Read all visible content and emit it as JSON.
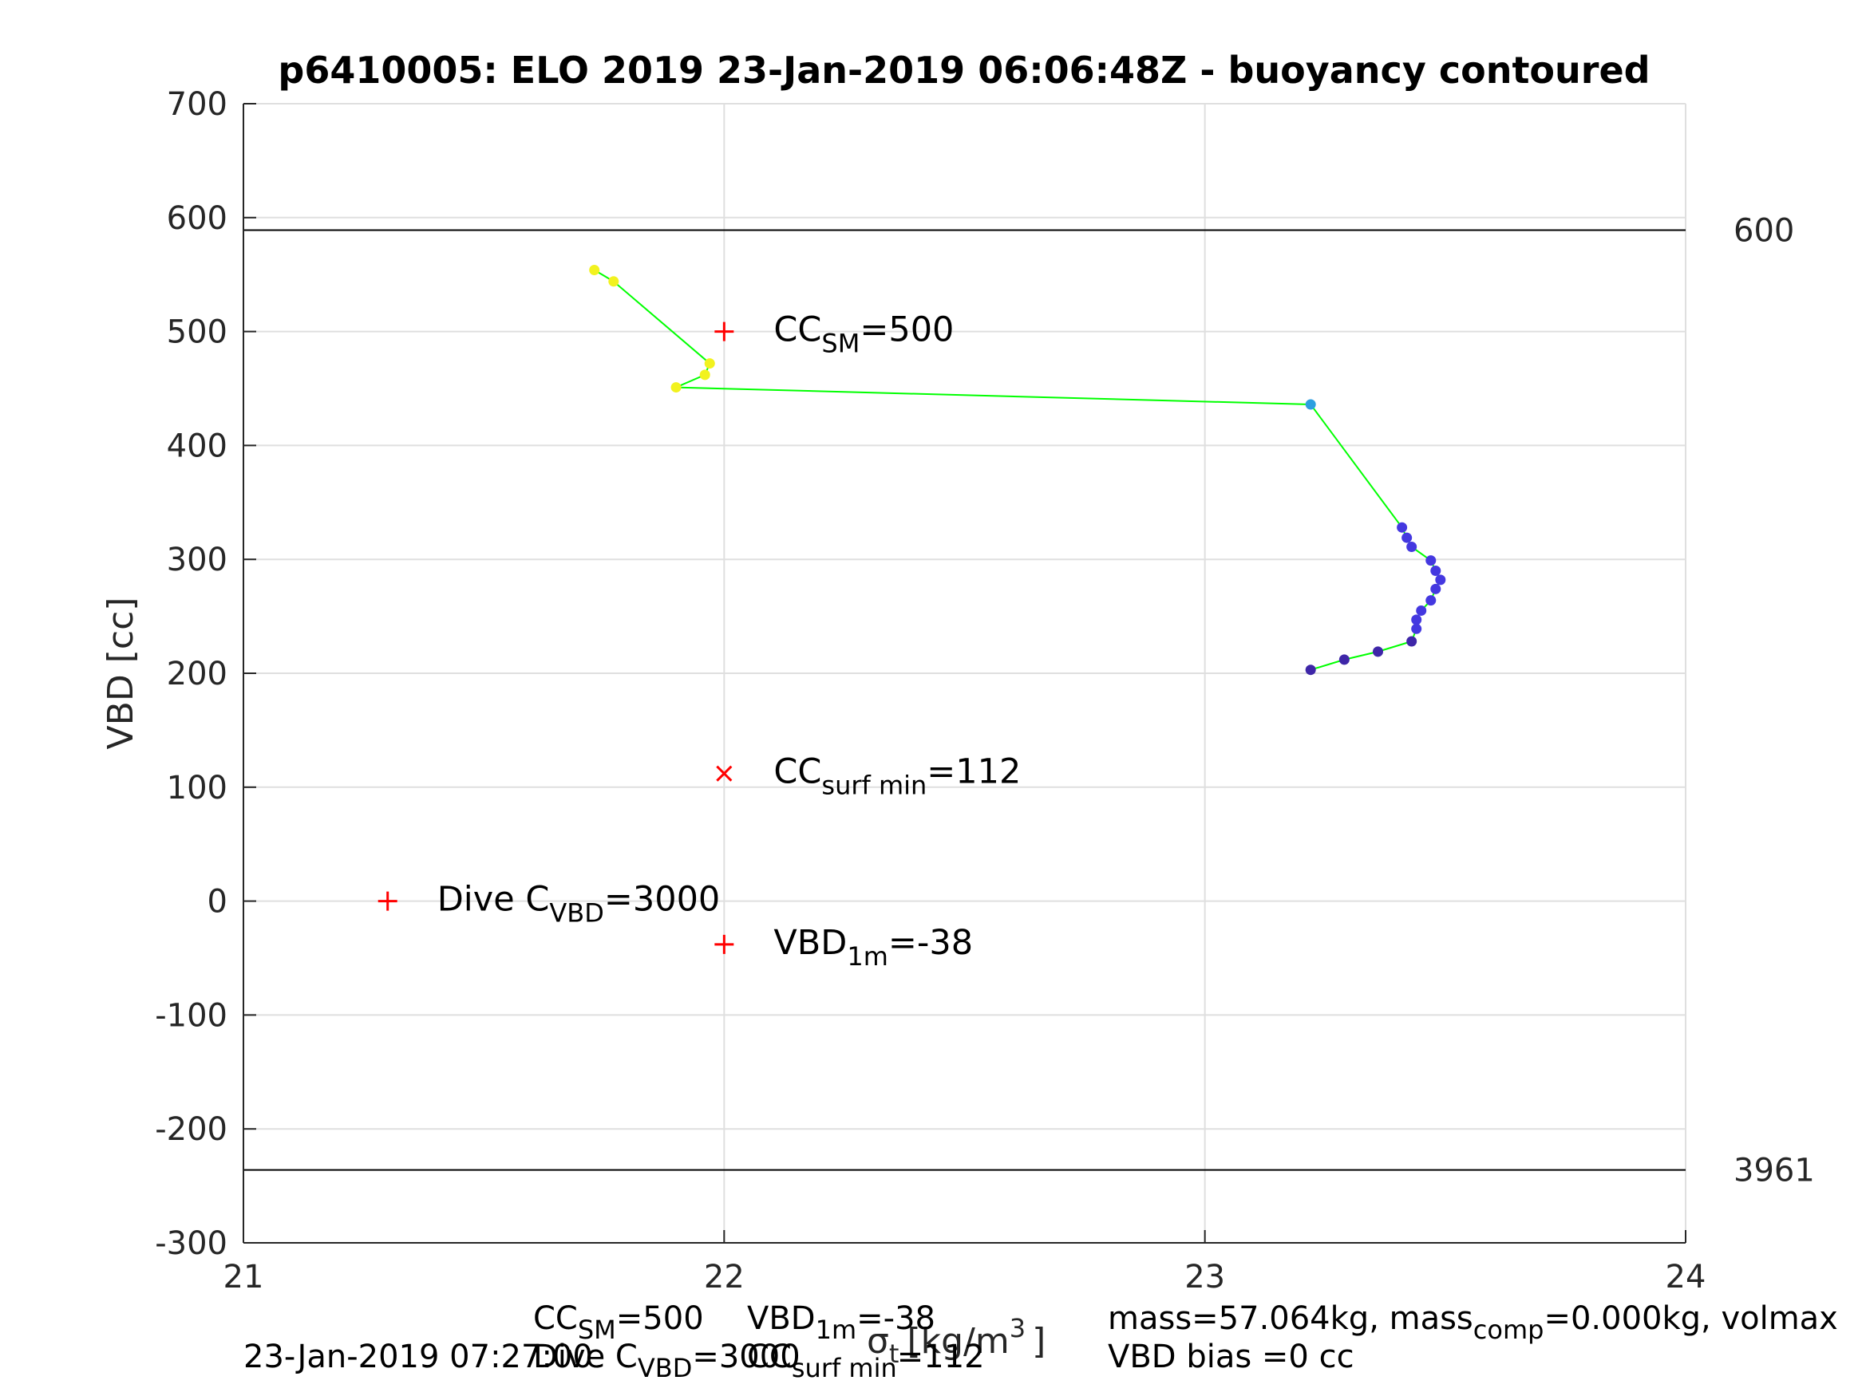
{
  "chart_data": {
    "type": "scatter",
    "title": "p6410005: ELO 2019 23-Jan-2019 06:06:48Z - buoyancy contoured",
    "ylabel": "VBD [cc]",
    "xlabel_main": "σ",
    "xlabel_sub": "t",
    "xlabel_unit": "[kg/m",
    "xlabel_exp": "3",
    "xlabel_close": "]",
    "xlim": [
      21,
      24
    ],
    "ylim": [
      -300,
      700
    ],
    "xticks": [
      "21",
      "22",
      "23",
      "24"
    ],
    "yticks": [
      "-300",
      "-200",
      "-100",
      "0",
      "100",
      "200",
      "300",
      "400",
      "500",
      "600",
      "700"
    ],
    "grid": true,
    "hlines": [
      {
        "y": 589,
        "label": "600"
      },
      {
        "y": -236,
        "label": "3961"
      }
    ],
    "series": [
      {
        "line_color": "#00ff00",
        "x": [
          21.73,
          21.77,
          21.97,
          21.96,
          21.9,
          23.22,
          23.41,
          23.42,
          23.43,
          23.47,
          23.48,
          23.49,
          23.48,
          23.47,
          23.45,
          23.44,
          23.44,
          23.43,
          23.36,
          23.29,
          23.22
        ],
        "y": [
          554,
          544,
          472,
          462,
          451,
          436,
          328,
          319,
          311,
          299,
          290,
          282,
          274,
          264,
          255,
          247,
          239,
          228,
          219,
          212,
          203
        ],
        "colors": [
          "#f2f21f",
          "#f2f21f",
          "#f2f21f",
          "#f2f21f",
          "#f2f21f",
          "#2c9fe0",
          "#4438e0",
          "#4438e0",
          "#4438e0",
          "#4438e0",
          "#4438e0",
          "#4438e0",
          "#4438e0",
          "#4438e0",
          "#4438e0",
          "#4438e0",
          "#4438e0",
          "#3e26a8",
          "#3e26a8",
          "#3e26a8",
          "#3e26a8"
        ]
      }
    ],
    "markers": [
      {
        "marker": "+",
        "x": 22.0,
        "y": 500,
        "label": "CC",
        "sub": "SM",
        "value": "=500"
      },
      {
        "marker": "x",
        "x": 22.0,
        "y": 112,
        "label": "CC",
        "sub": "surf min",
        "value": "=112"
      },
      {
        "marker": "+",
        "x": 21.3,
        "y": 0,
        "label": "Dive C",
        "sub": "VBD",
        "value": "=3000"
      },
      {
        "marker": "+",
        "x": 22.0,
        "y": -38,
        "label": "VBD",
        "sub": "1m",
        "value": "=-38"
      }
    ],
    "marker_color": "#ff0000"
  },
  "footer": {
    "cc_sm": "CC",
    "cc_sm_sub": "SM",
    "cc_sm_val": "=500",
    "vbd_1m": "VBD",
    "vbd_1m_sub": "1m",
    "vbd_1m_val": "=-38",
    "dive_c": "Dive C",
    "dive_c_sub": "VBD",
    "dive_c_val": "=3000",
    "cc_surf": "CC",
    "cc_surf_sub": "surf min",
    "cc_surf_val": "=112",
    "timestamp": "23-Jan-2019 07:27:00",
    "mass_a": "mass=57.064kg, mass",
    "mass_sub": "comp",
    "mass_b": "=0.000kg, volmax",
    "vbd_bias": "VBD bias =0 cc"
  }
}
